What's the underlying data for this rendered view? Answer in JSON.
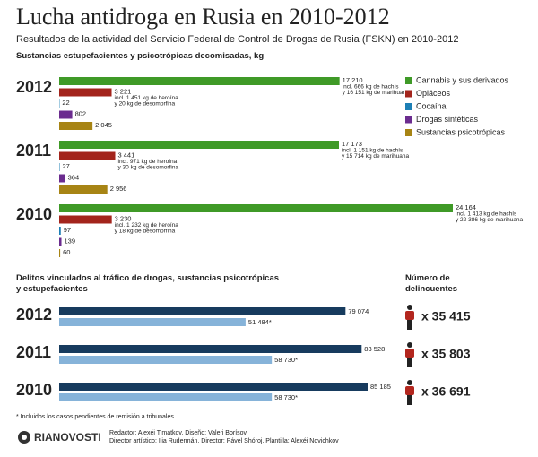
{
  "title": "Lucha antidroga en Rusia en 2010-2012",
  "subtitle": "Resultados de la actividad del Servicio Federal de Control de Drogas de Rusia (FSKN) en 2010-2012",
  "chart_data": [
    {
      "type": "bar",
      "orientation": "horizontal",
      "title": "Sustancias estupefacientes y psicotrópicas decomisadas, kg",
      "categories": [
        "2012",
        "2011",
        "2010"
      ],
      "series": [
        {
          "name": "Cannabis y sus derivados",
          "color": "#3f9a27",
          "values": [
            17210,
            17173,
            24164
          ],
          "value_labels": [
            "17 210",
            "17 173",
            "24 164"
          ],
          "notes": [
            [
              "incl. 666 kg de hachís",
              "y 16 151 kg de marihuana"
            ],
            [
              "incl. 1 151 kg de hachís",
              "y 15 714 kg de marihuana"
            ],
            [
              "incl. 1 413 kg de hachís",
              "y 22 386 kg de marihuana"
            ]
          ]
        },
        {
          "name": "Opiáceos",
          "color": "#a3241c",
          "values": [
            3221,
            3441,
            3230
          ],
          "value_labels": [
            "3 221",
            "3 441",
            "3 230"
          ],
          "notes": [
            [
              "incl. 1 451 kg de heroína",
              "y 20 kg de desomorfina"
            ],
            [
              "incl. 971 kg de heroína",
              "y 30 kg de desomorfina"
            ],
            [
              "incl. 1 232 kg de heroína",
              "y 18 kg de desomorfina"
            ]
          ]
        },
        {
          "name": "Cocaína",
          "color": "#1d7fb5",
          "values": [
            22,
            27,
            97
          ]
        },
        {
          "name": "Drogas sintéticas",
          "color": "#6b2c8f",
          "values": [
            802,
            364,
            139
          ]
        },
        {
          "name": "Sustancias psicotrópicas",
          "color": "#a78414",
          "values": [
            2045,
            2956,
            60
          ],
          "value_labels": [
            "2 045",
            "2 956",
            "60"
          ]
        }
      ]
    },
    {
      "type": "bar",
      "orientation": "horizontal",
      "title": "Delitos vinculados al tráfico de drogas, sustancias psicotrópicas y estupefacientes",
      "categories": [
        "2012",
        "2011",
        "2010"
      ],
      "series": [
        {
          "color": "#173b5e",
          "values": [
            79074,
            83528,
            85185
          ],
          "value_labels": [
            "79 074",
            "83 528",
            "85 185"
          ]
        },
        {
          "color": "#86b3d9",
          "values": [
            51484,
            58730,
            58730
          ],
          "value_labels": [
            "51 484*",
            "58 730*",
            "58 730*"
          ]
        }
      ]
    }
  ],
  "offenders": {
    "title": "Número de delincuentes",
    "values": [
      35415,
      35803,
      36691
    ],
    "value_labels": [
      "x 35 415",
      "x 35 803",
      "x 36 691"
    ]
  },
  "footnote": "* Incluidos los casos pendientes de remisión a tribunales",
  "logo": "RIANOVOSTI",
  "credits": [
    "Redactor: Alexéi Timatkov. Diseño: Valeri Borísov.",
    "Director artístico: Ilia Rudermán. Director: Pável Shóroj. Plantilla: Alexéi Novichkov"
  ]
}
